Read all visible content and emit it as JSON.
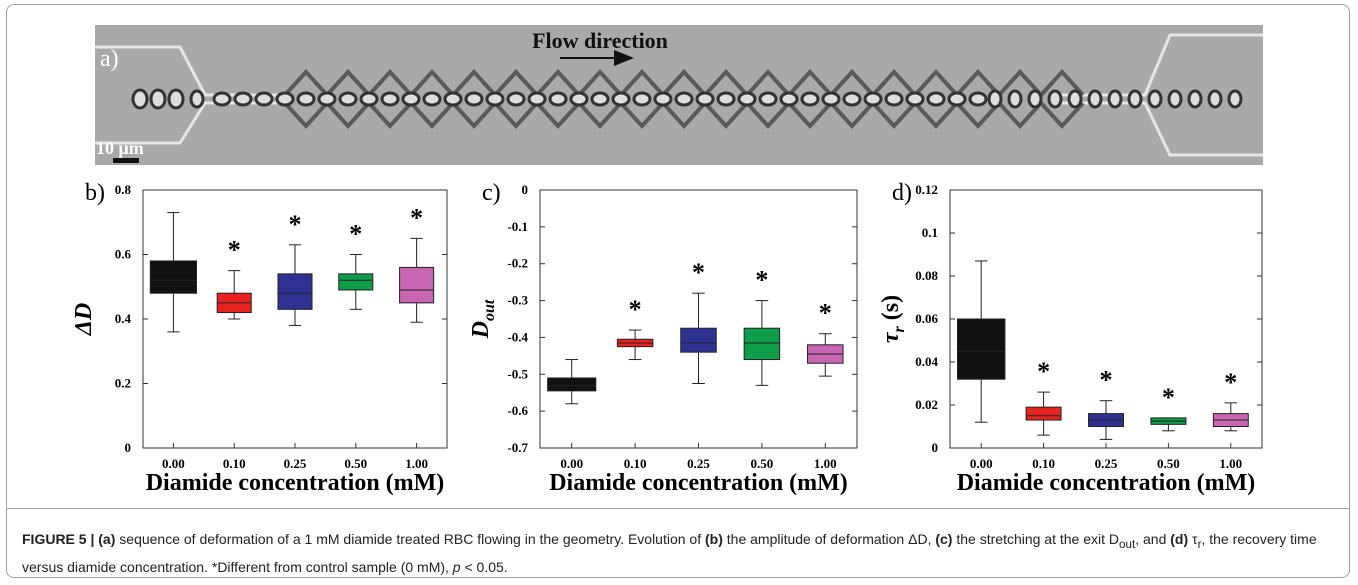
{
  "panel_a": {
    "label": "a)",
    "flow_label": "Flow direction",
    "scale_label": "10 μm"
  },
  "chart_data": [
    {
      "type": "box",
      "panel_label": "b)",
      "y_label": "ΔD",
      "x_label": "Diamide concentration (mM)",
      "categories": [
        "0.00",
        "0.10",
        "0.25",
        "0.50",
        "1.00"
      ],
      "ylim": [
        0,
        0.8
      ],
      "yticks": [
        0,
        0.2,
        0.4,
        0.6,
        0.8
      ],
      "significance_mark": "*",
      "significant": [
        false,
        true,
        true,
        true,
        true
      ],
      "boxes": [
        {
          "color": "#111111",
          "min": 0.36,
          "q1": 0.48,
          "median": 0.52,
          "q3": 0.58,
          "max": 0.73
        },
        {
          "color": "#e8231f",
          "min": 0.4,
          "q1": 0.42,
          "median": 0.45,
          "q3": 0.48,
          "max": 0.55
        },
        {
          "color": "#2e3192",
          "min": 0.38,
          "q1": 0.43,
          "median": 0.48,
          "q3": 0.54,
          "max": 0.63
        },
        {
          "color": "#0f9d4a",
          "min": 0.43,
          "q1": 0.49,
          "median": 0.52,
          "q3": 0.54,
          "max": 0.6
        },
        {
          "color": "#c966b3",
          "min": 0.39,
          "q1": 0.45,
          "median": 0.49,
          "q3": 0.56,
          "max": 0.65
        }
      ]
    },
    {
      "type": "box",
      "panel_label": "c)",
      "y_label": "D",
      "y_label_sub": "out",
      "x_label": "Diamide concentration (mM)",
      "categories": [
        "0.00",
        "0.10",
        "0.25",
        "0.50",
        "1.00"
      ],
      "ylim": [
        -0.7,
        0
      ],
      "yticks": [
        0,
        -0.1,
        -0.2,
        -0.3,
        -0.4,
        -0.5,
        -0.6,
        -0.7
      ],
      "significance_mark": "*",
      "significant": [
        false,
        true,
        true,
        true,
        true
      ],
      "boxes": [
        {
          "color": "#111111",
          "min": -0.58,
          "q1": -0.545,
          "median": -0.53,
          "q3": -0.51,
          "max": -0.46
        },
        {
          "color": "#e8231f",
          "min": -0.46,
          "q1": -0.425,
          "median": -0.415,
          "q3": -0.405,
          "max": -0.38
        },
        {
          "color": "#2e3192",
          "min": -0.525,
          "q1": -0.44,
          "median": -0.415,
          "q3": -0.375,
          "max": -0.28
        },
        {
          "color": "#0f9d4a",
          "min": -0.53,
          "q1": -0.46,
          "median": -0.415,
          "q3": -0.375,
          "max": -0.3
        },
        {
          "color": "#c966b3",
          "min": -0.505,
          "q1": -0.47,
          "median": -0.445,
          "q3": -0.42,
          "max": -0.39
        }
      ]
    },
    {
      "type": "box",
      "panel_label": "d)",
      "y_label": "τ",
      "y_label_sub": "r",
      "y_label_unit": " (s)",
      "x_label": "Diamide concentration (mM)",
      "categories": [
        "0.00",
        "0.10",
        "0.25",
        "0.50",
        "1.00"
      ],
      "ylim": [
        0,
        0.12
      ],
      "yticks": [
        0,
        0.02,
        0.04,
        0.06,
        0.08,
        0.1,
        0.12
      ],
      "significance_mark": "*",
      "significant": [
        false,
        true,
        true,
        true,
        true
      ],
      "boxes": [
        {
          "color": "#111111",
          "min": 0.012,
          "q1": 0.032,
          "median": 0.045,
          "q3": 0.06,
          "max": 0.087
        },
        {
          "color": "#e8231f",
          "min": 0.006,
          "q1": 0.013,
          "median": 0.015,
          "q3": 0.019,
          "max": 0.026
        },
        {
          "color": "#2e3192",
          "min": 0.004,
          "q1": 0.01,
          "median": 0.013,
          "q3": 0.016,
          "max": 0.022
        },
        {
          "color": "#0f9d4a",
          "min": 0.008,
          "q1": 0.011,
          "median": 0.0125,
          "q3": 0.014,
          "max": 0.014
        },
        {
          "color": "#c966b3",
          "min": 0.008,
          "q1": 0.01,
          "median": 0.013,
          "q3": 0.016,
          "max": 0.021
        }
      ]
    }
  ],
  "caption": {
    "segments": [
      {
        "text": "FIGURE 5 | ",
        "style": "b"
      },
      {
        "text": "(a)",
        "style": "b"
      },
      {
        "text": " sequence of deformation of a 1 mM diamide treated RBC flowing in the geometry. Evolution of ",
        "style": "n"
      },
      {
        "text": "(b)",
        "style": "b"
      },
      {
        "text": " the amplitude of deformation ΔD, ",
        "style": "n"
      },
      {
        "text": "(c)",
        "style": "b"
      },
      {
        "text": " the stretching at the exit D",
        "style": "n"
      },
      {
        "text": "out",
        "style": "sub"
      },
      {
        "text": ", and ",
        "style": "n"
      },
      {
        "text": "(d)",
        "style": "b"
      },
      {
        "text": " τ",
        "style": "n"
      },
      {
        "text": "r",
        "style": "sub"
      },
      {
        "text": ", the recovery time versus diamide concentration. *Different from control sample (0 mM), ",
        "style": "n"
      },
      {
        "text": "p",
        "style": "i"
      },
      {
        "text": " < 0.05.",
        "style": "n"
      }
    ]
  }
}
